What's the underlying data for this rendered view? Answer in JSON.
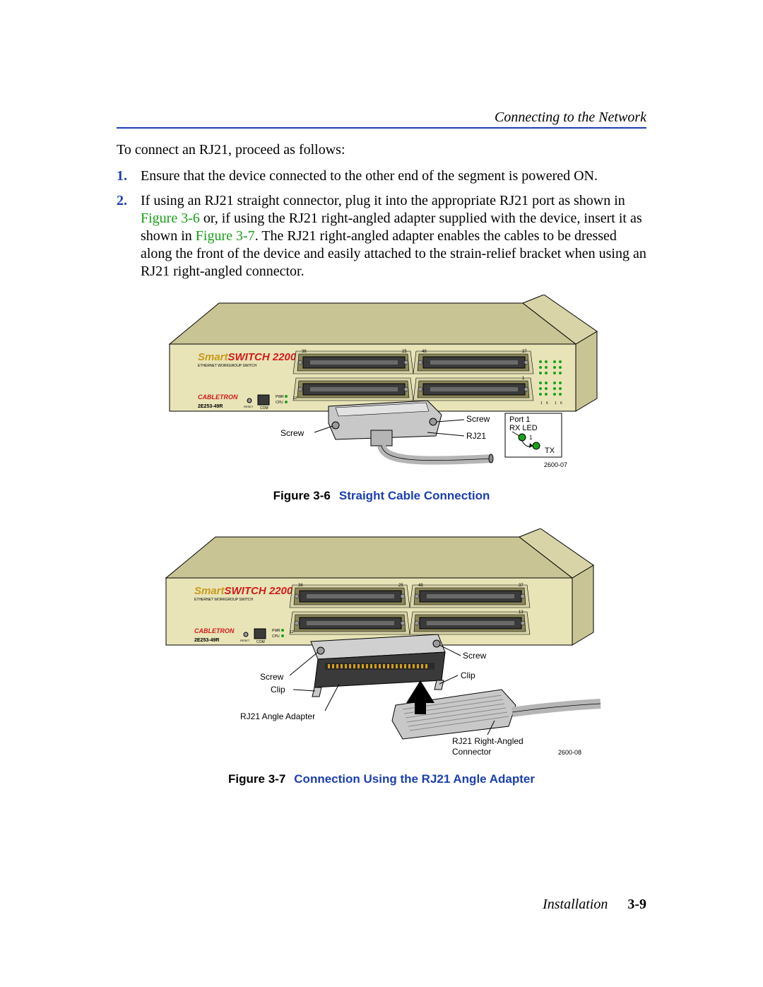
{
  "colors": {
    "rule": "#1a3fb0",
    "link_blue": "#1a3fb0",
    "xref_green": "#18a018",
    "device_face": "#e8e4b8",
    "device_face_dark": "#c9c494",
    "device_edge": "#000000",
    "port_body": "#3a3a3a",
    "port_slot": "#6a6a6a",
    "port_bevel_light": "#d8d4a8",
    "port_bevel_dark": "#8a865a",
    "connector_fill": "#c8c8c8",
    "connector_stroke": "#000000",
    "cable": "#b5b5b5",
    "screw_fill": "#9a9a9a",
    "led_green": "#1aa01a",
    "annot_text": "#000000",
    "brand_red": "#d11a1a",
    "brand_gold": "#c99a1a",
    "figure_id": "#000000"
  },
  "page": {
    "running_head": "Connecting to the Network",
    "footer_section": "Installation",
    "footer_page": "3-9"
  },
  "text": {
    "intro": "To connect an RJ21, proceed as follows:",
    "steps": [
      {
        "num": "1.",
        "parts": [
          {
            "t": "Ensure that the device connected to the other end of the segment is powered ON."
          }
        ]
      },
      {
        "num": "2.",
        "parts": [
          {
            "t": "If using an RJ21 straight connector, plug it into the appropriate RJ21 port as shown in "
          },
          {
            "t": "Figure 3-6",
            "xref": true
          },
          {
            "t": " or, if using the RJ21 right-angled adapter supplied with the device, insert it as shown in "
          },
          {
            "t": "Figure 3-7",
            "xref": true
          },
          {
            "t": ". The RJ21 right-angled adapter enables the cables to be dressed along the front of the device and easily attached to the strain-relief bracket when using an RJ21 right-angled connector."
          }
        ]
      }
    ]
  },
  "figure_a": {
    "caption_label": "Figure 3-6",
    "caption_text": "Straight Cable Connection",
    "id_tag": "2600-07",
    "device": {
      "brand1": "Smart",
      "brand2": "SWITCH",
      "brand3": "2200",
      "subtitle": "ETHERNET WORKGROUP SWITCH",
      "model": "2E253-49R",
      "vendor": "CABLETRON",
      "com_label": "COM",
      "reset_label": "RESET",
      "pwr_label": "PWR",
      "cpu_label": "CPU",
      "port_numbers": [
        "36",
        "25",
        "48",
        "37",
        "1",
        "24",
        "1",
        "13",
        "6",
        "6"
      ]
    },
    "labels": {
      "screw_l": "Screw",
      "screw_r": "Screw",
      "rj21": "RJ21",
      "inset_title": "Port 1",
      "inset_rx": "RX LED",
      "inset_tx": "TX",
      "inset_port": "1"
    }
  },
  "figure_b": {
    "caption_label": "Figure 3-7",
    "caption_text": "Connection Using the RJ21 Angle Adapter",
    "id_tag": "2600-08",
    "device": {
      "brand1": "Smart",
      "brand2": "SWITCH",
      "brand3": "2200",
      "subtitle": "ETHERNET WORKGROUP SWITCH",
      "model": "2E253-49R",
      "vendor": "CABLETRON",
      "com_label": "COM",
      "reset_label": "RESET",
      "pwr_label": "PWR",
      "cpu_label": "CPU",
      "port_numbers": [
        "36",
        "25",
        "48",
        "37",
        "1",
        "24",
        "13"
      ]
    },
    "labels": {
      "screw_l": "Screw",
      "screw_r": "Screw",
      "clip_l": "Clip",
      "clip_r": "Clip",
      "adapter": "RJ21 Angle Adapter",
      "angled_l1": "RJ21 Right-Angled",
      "angled_l2": "Connector"
    }
  }
}
